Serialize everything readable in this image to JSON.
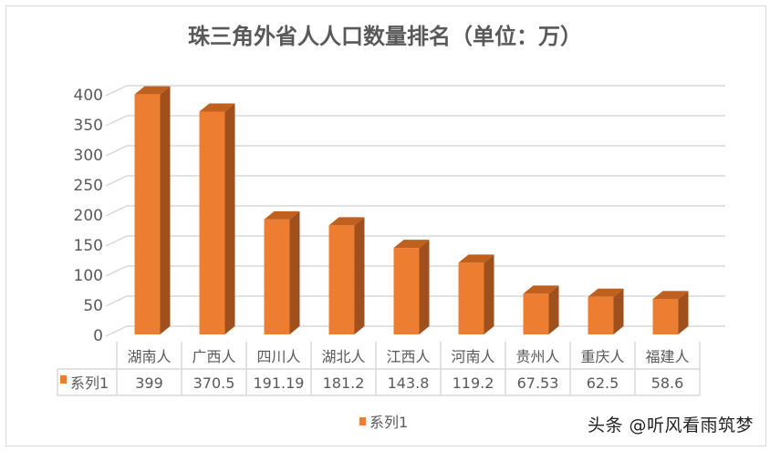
{
  "chart_data": {
    "type": "bar",
    "title": "珠三角外省人人口数量排名（单位：万）",
    "categories": [
      "湖南人",
      "广西人",
      "四川人",
      "湖北人",
      "江西人",
      "河南人",
      "贵州人",
      "重庆人",
      "福建人"
    ],
    "series": [
      {
        "name": "系列1",
        "values": [
          399,
          370.5,
          191.19,
          181.2,
          143.8,
          119.2,
          67.53,
          62.5,
          58.6
        ],
        "labels": [
          "399",
          "370.5",
          "191.19",
          "181.2",
          "143.8",
          "119.2",
          "67.53",
          "62.5",
          "58.6"
        ]
      }
    ],
    "ylim": [
      0,
      400
    ],
    "yticks": [
      0,
      50,
      100,
      150,
      200,
      250,
      300,
      350,
      400
    ],
    "xlabel": "",
    "ylabel": "",
    "grid": true,
    "legend": "bottom-center",
    "data_table": true,
    "colors": {
      "front": "#ed7d31",
      "side": "#a0501c",
      "top": "#c0601f",
      "grid": "#d9d9d9",
      "text": "#595959"
    }
  },
  "watermark": "头条 @听风看雨筑梦"
}
